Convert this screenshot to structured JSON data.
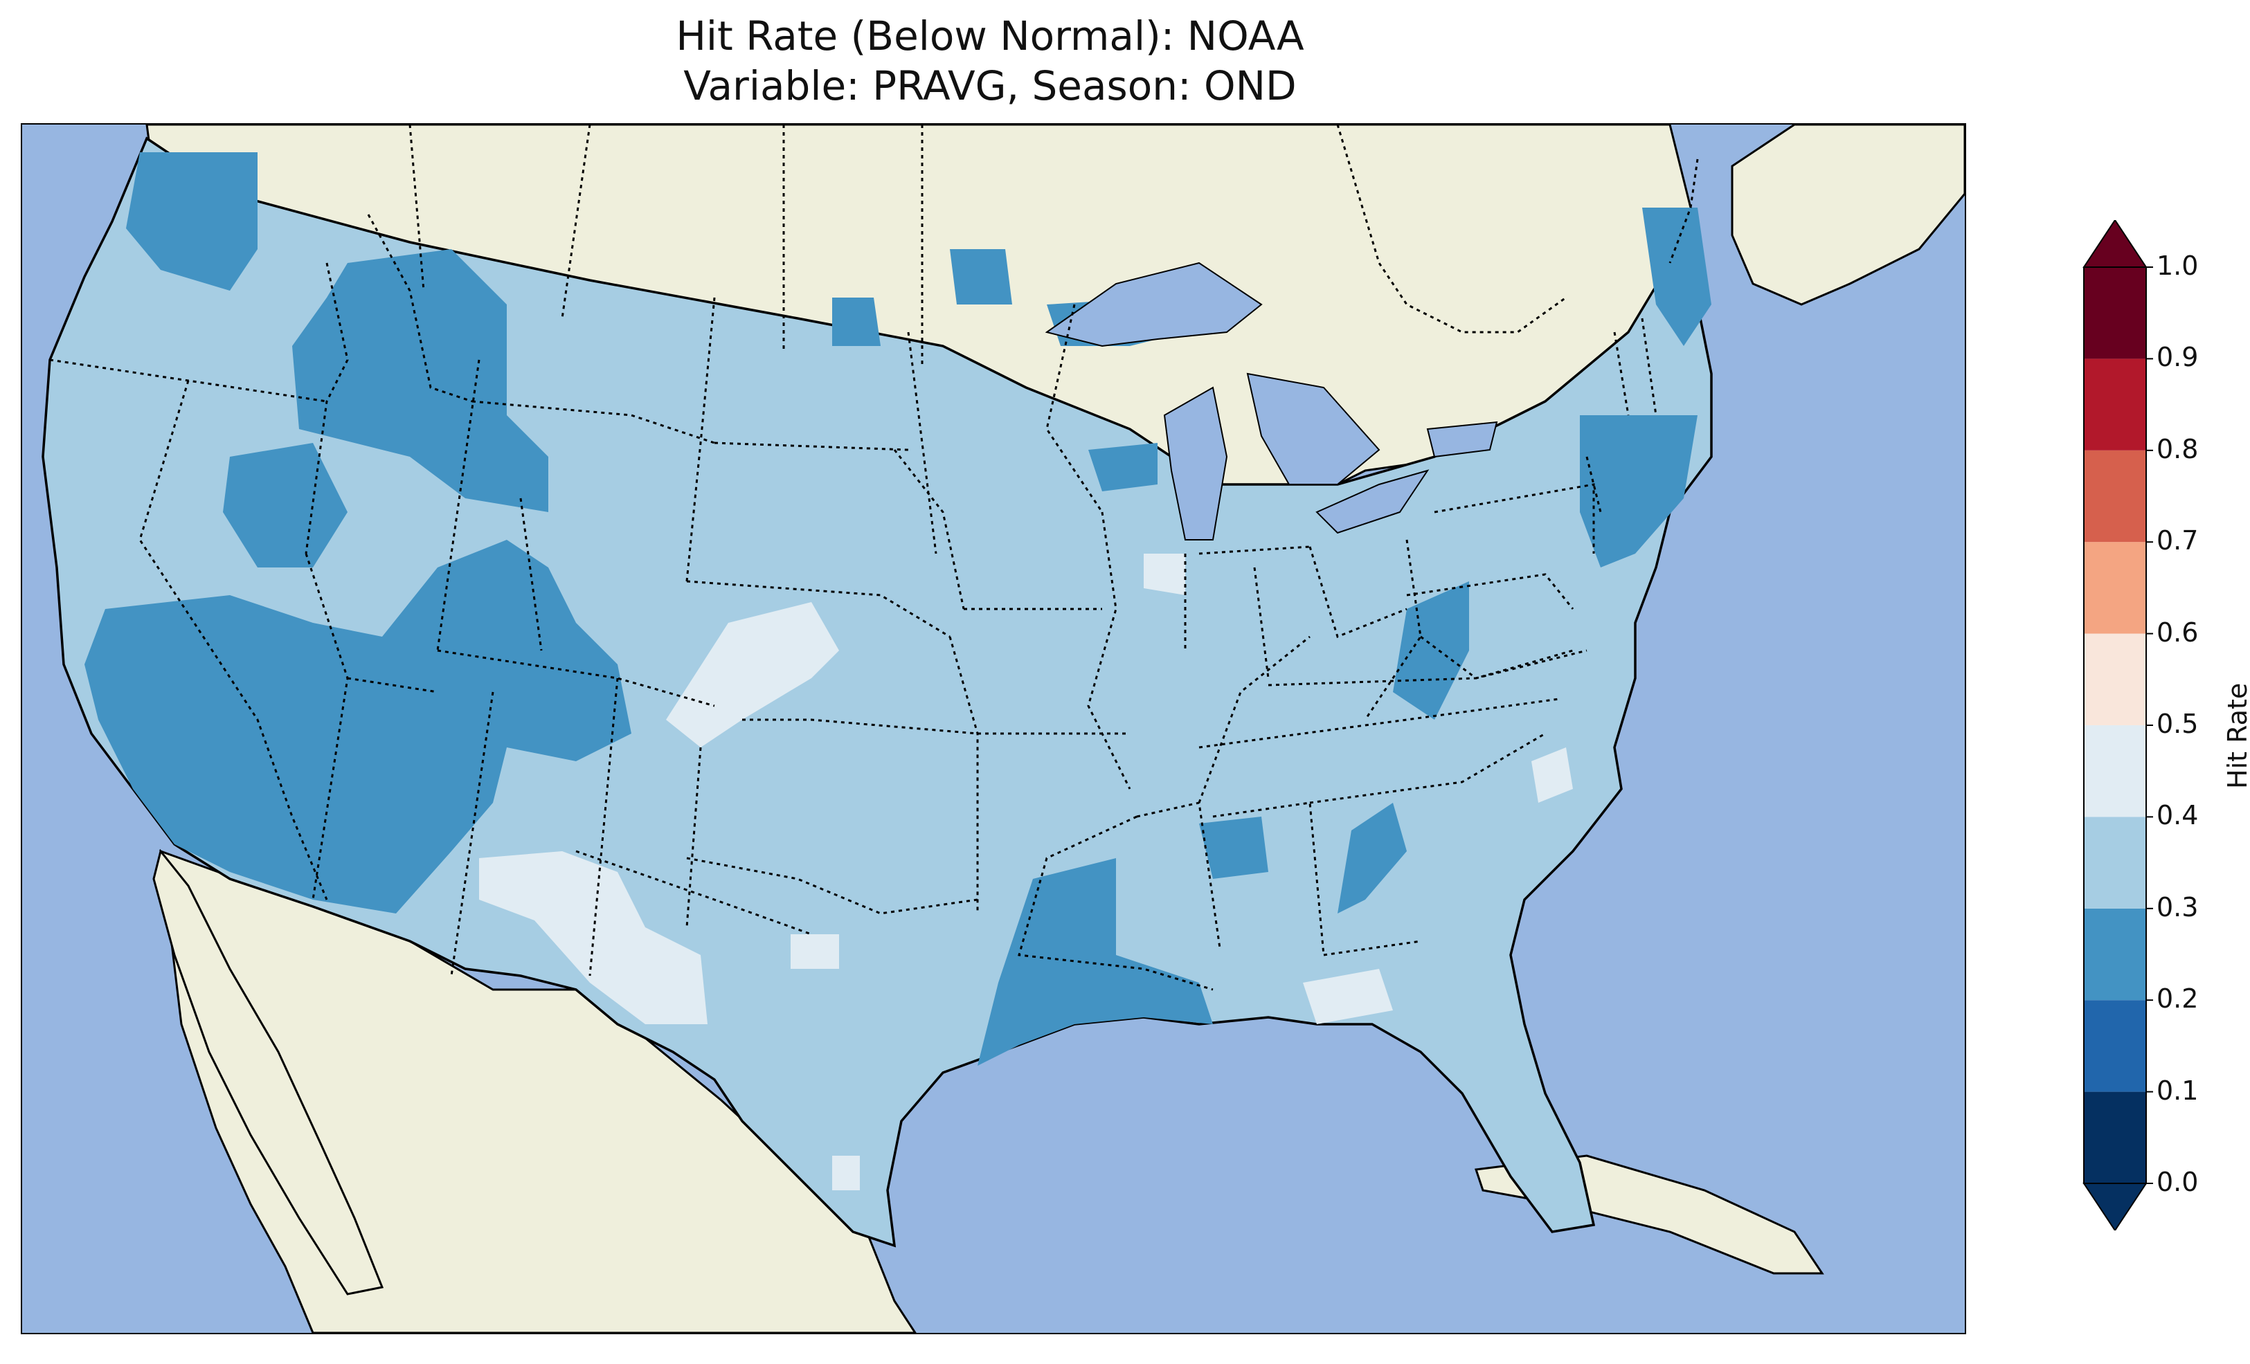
{
  "title": {
    "line1": "Hit Rate (Below Normal): NOAA",
    "line2": "Variable: PRAVG, Season: OND"
  },
  "colors": {
    "ocean": "#97b6e1",
    "land": "#efefdc",
    "lakes": "#97b6e1"
  },
  "colorbar": {
    "label": "Hit Rate",
    "ticks": [
      "0.0",
      "0.1",
      "0.2",
      "0.3",
      "0.4",
      "0.5",
      "0.6",
      "0.7",
      "0.8",
      "0.9",
      "1.0"
    ],
    "bins": [
      {
        "range": [
          0.0,
          0.1
        ],
        "color": "#053061"
      },
      {
        "range": [
          0.1,
          0.2
        ],
        "color": "#2166ac"
      },
      {
        "range": [
          0.2,
          0.3
        ],
        "color": "#4393c3"
      },
      {
        "range": [
          0.3,
          0.4
        ],
        "color": "#a6cde3"
      },
      {
        "range": [
          0.4,
          0.5
        ],
        "color": "#e1ecf3"
      },
      {
        "range": [
          0.5,
          0.6
        ],
        "color": "#f9e6db"
      },
      {
        "range": [
          0.6,
          0.7
        ],
        "color": "#f4a582"
      },
      {
        "range": [
          0.7,
          0.8
        ],
        "color": "#d6604d"
      },
      {
        "range": [
          0.8,
          0.9
        ],
        "color": "#b2182b"
      },
      {
        "range": [
          0.9,
          1.0
        ],
        "color": "#67001f"
      }
    ],
    "extend": "both"
  },
  "map_data": {
    "region": "Contiguous United States",
    "dominant_bin": [
      0.3,
      0.4
    ],
    "regions_0_2_to_0_3": [
      "Pacific Northwest",
      "Idaho / Wyoming",
      "Great Basin",
      "California / Arizona",
      "Northern Plains patch",
      "Lower Mississippi Valley",
      "New England coast",
      "Maine"
    ],
    "regions_0_4_to_0_5": [
      "Southern Plains (Kansas/Colorado border)",
      "Southwest Texas / New Mexico",
      "Northern Illinois patch",
      "North Carolina coast",
      "Florida panhandle coast"
    ]
  }
}
